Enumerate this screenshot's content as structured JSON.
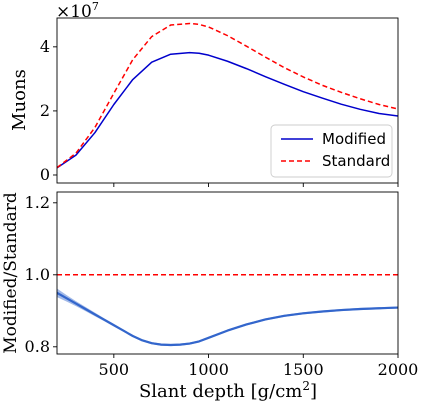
{
  "chart_data": [
    {
      "type": "line",
      "panel": "top",
      "ylabel": "Muons",
      "y_multiplier": "×10^7",
      "y_multiplier_base": "×10",
      "y_multiplier_exp": "7",
      "xlim": [
        200,
        2000
      ],
      "ylim": [
        -0.25,
        4.9
      ],
      "yticks": [
        0,
        2,
        4
      ],
      "grid": false,
      "legend_position": "bottom-right",
      "series": [
        {
          "name": "Modified",
          "color": "#0000cc",
          "style": "solid",
          "x": [
            200,
            300,
            400,
            500,
            600,
            700,
            800,
            900,
            950,
            1000,
            1100,
            1200,
            1300,
            1400,
            1500,
            1600,
            1700,
            1800,
            1900,
            2000
          ],
          "y": [
            0.22,
            0.62,
            1.32,
            2.2,
            2.98,
            3.52,
            3.77,
            3.82,
            3.8,
            3.74,
            3.55,
            3.32,
            3.07,
            2.83,
            2.6,
            2.4,
            2.21,
            2.05,
            1.92,
            1.84
          ]
        },
        {
          "name": "Standard",
          "color": "#ff0000",
          "style": "dashed",
          "x": [
            200,
            300,
            400,
            500,
            600,
            700,
            800,
            900,
            950,
            1000,
            1100,
            1200,
            1300,
            1400,
            1500,
            1600,
            1700,
            1800,
            1900,
            2000
          ],
          "y": [
            0.23,
            0.68,
            1.48,
            2.55,
            3.6,
            4.32,
            4.68,
            4.73,
            4.7,
            4.62,
            4.35,
            4.02,
            3.68,
            3.35,
            3.06,
            2.8,
            2.58,
            2.38,
            2.2,
            2.06
          ]
        }
      ]
    },
    {
      "type": "line",
      "panel": "bottom",
      "xlabel": "Slant depth [g/cm²]",
      "xlabel_main": "Slant depth [g/cm",
      "xlabel_sup": "2",
      "xlabel_end": "]",
      "ylabel": "Modified/Standard",
      "xlim": [
        200,
        2000
      ],
      "ylim": [
        0.78,
        1.23
      ],
      "xticks": [
        500,
        1000,
        1500,
        2000
      ],
      "yticks": [
        0.8,
        1.0,
        1.2
      ],
      "ytick_labels": [
        "0.8",
        "1.0",
        "1.2"
      ],
      "grid": false,
      "series": [
        {
          "name": "Modified/Standard ratio",
          "color": "#3366cc",
          "style": "solid",
          "band": true,
          "x": [
            200,
            250,
            300,
            350,
            400,
            450,
            500,
            550,
            600,
            650,
            700,
            750,
            800,
            850,
            900,
            950,
            1000,
            1100,
            1200,
            1300,
            1400,
            1500,
            1600,
            1700,
            1800,
            1900,
            2000
          ],
          "y": [
            0.95,
            0.935,
            0.92,
            0.905,
            0.89,
            0.875,
            0.86,
            0.845,
            0.83,
            0.818,
            0.81,
            0.806,
            0.805,
            0.806,
            0.809,
            0.815,
            0.825,
            0.845,
            0.862,
            0.876,
            0.886,
            0.893,
            0.898,
            0.902,
            0.905,
            0.907,
            0.909
          ],
          "err": [
            0.012,
            0.009,
            0.007,
            0.006,
            0.005,
            0.004,
            0.004,
            0.003,
            0.003,
            0.003,
            0.003,
            0.003,
            0.003,
            0.003,
            0.003,
            0.003,
            0.003,
            0.003,
            0.003,
            0.003,
            0.003,
            0.003,
            0.003,
            0.003,
            0.003,
            0.003,
            0.003
          ]
        },
        {
          "name": "Unity",
          "color": "#ff0000",
          "style": "dashed",
          "x": [
            200,
            2000
          ],
          "y": [
            1.0,
            1.0
          ]
        }
      ]
    }
  ]
}
